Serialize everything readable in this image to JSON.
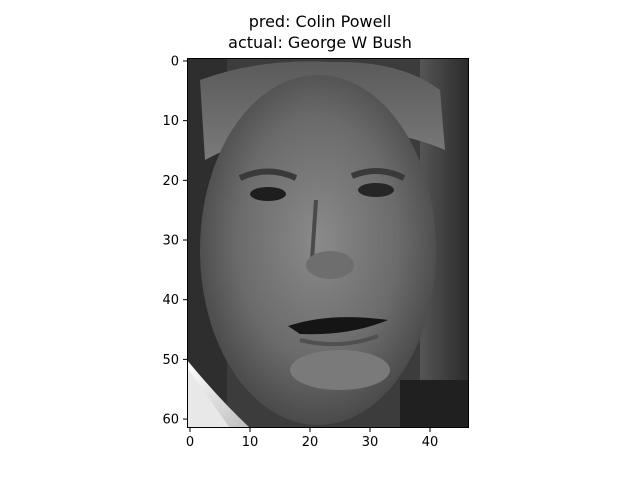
{
  "chart_data": {
    "type": "heatmap",
    "title_lines": [
      "pred: Colin Powell",
      "actual: George W Bush"
    ],
    "colormap": "gray",
    "image_shape": [
      62,
      47
    ],
    "xlim": [
      -0.5,
      46.5
    ],
    "ylim": [
      61.5,
      -0.5
    ],
    "xticks": [
      0,
      10,
      20,
      30,
      40
    ],
    "yticks": [
      0,
      10,
      20,
      30,
      40,
      50,
      60
    ],
    "content": "grayscale face photograph",
    "grid": false
  }
}
